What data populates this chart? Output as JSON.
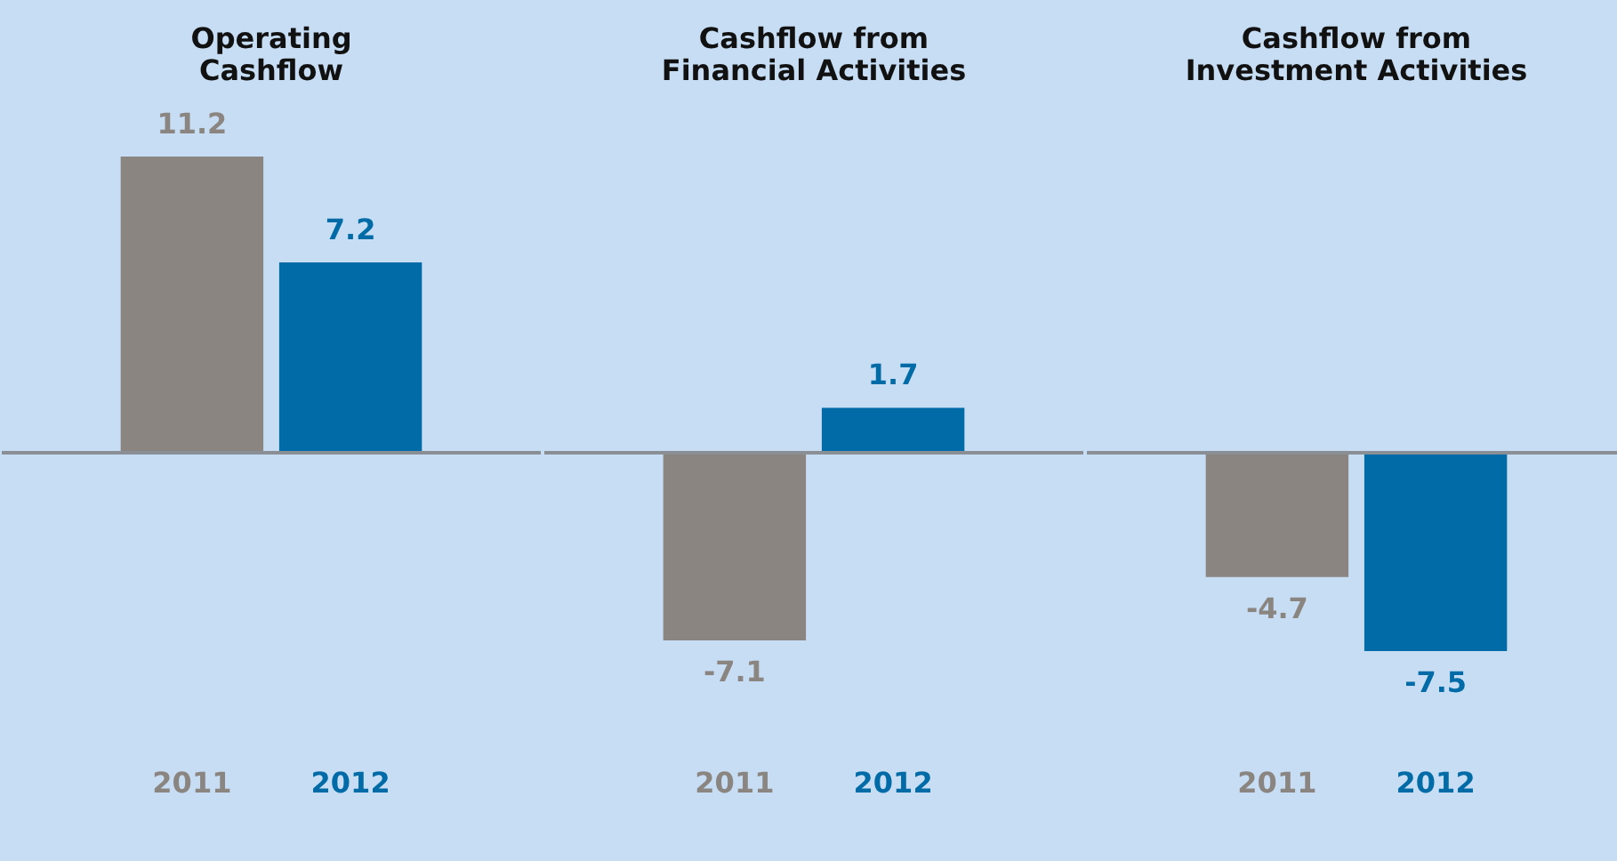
{
  "chart_data": [
    {
      "type": "bar",
      "title": "Operating Cashflow",
      "categories": [
        "2011",
        "2012"
      ],
      "values": [
        11.2,
        7.2
      ],
      "colors": [
        "#8b8581",
        "#006ba6"
      ],
      "data_labels": true
    },
    {
      "type": "bar",
      "title": "Cashflow from Financial Activities",
      "categories": [
        "2011",
        "2012"
      ],
      "values": [
        -7.1,
        1.7
      ],
      "colors": [
        "#8b8581",
        "#006ba6"
      ],
      "data_labels": true
    },
    {
      "type": "bar",
      "title": "Cashflow from Investment Activities",
      "categories": [
        "2011",
        "2012"
      ],
      "values": [
        -4.7,
        -7.5
      ],
      "colors": [
        "#8b8581",
        "#006ba6"
      ],
      "data_labels": true
    }
  ]
}
